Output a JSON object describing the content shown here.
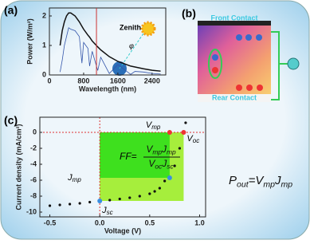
{
  "panel_labels": [
    "(a)",
    "(b)",
    "(c)"
  ],
  "diagram": {
    "front_contact": "Front Contact",
    "rear_contact": "Rear Contact"
  },
  "equations": {
    "fill_factor": {
      "lhs": "FF=",
      "numerator": [
        {
          "text": "V",
          "sub": "mp"
        },
        {
          "text": "J",
          "sub": "mp"
        }
      ],
      "denominator": [
        {
          "text": "V",
          "sub": "oc"
        },
        {
          "text": "J",
          "sub": "sc"
        }
      ]
    },
    "power": [
      {
        "text": "P",
        "sub": "out"
      },
      {
        "text": "="
      },
      {
        "text": "V",
        "sub": "mp"
      },
      {
        "text": "J",
        "sub": "mp"
      }
    ]
  },
  "chart_data": [
    {
      "type": "line",
      "x_label": "Wavelength (nm)",
      "y_label": "Power (W/m²)",
      "annotations": [
        "Zenith",
        "φ"
      ],
      "x": [
        250,
        300,
        350,
        400,
        450,
        500,
        600,
        700,
        760,
        800,
        900,
        940,
        1000,
        1130,
        1200,
        1400,
        1600,
        1900,
        2000,
        2200,
        2400,
        2600
      ],
      "series": [
        {
          "color": "#111111",
          "values": [
            1.0,
            1.5,
            1.8,
            2.0,
            2.1,
            2.1,
            2.0,
            1.8,
            1.65,
            1.55,
            1.35,
            1.28,
            1.15,
            0.95,
            0.85,
            0.62,
            0.46,
            0.3,
            0.27,
            0.21,
            0.16,
            0.13
          ]
        },
        {
          "color": "#3355aa",
          "values": [
            0.1,
            0.5,
            1.0,
            1.3,
            1.6,
            1.55,
            1.5,
            1.3,
            0.4,
            1.1,
            0.9,
            0.3,
            0.8,
            0.15,
            0.6,
            0.05,
            0.35,
            0.02,
            0.12,
            0.1,
            0.05,
            0.03
          ]
        }
      ],
      "vline": 1100,
      "vline_color": "#cc3333",
      "xlim": [
        0,
        2720
      ],
      "ylim": [
        0,
        2.27
      ],
      "xticks": [
        0,
        800,
        1600,
        2400
      ],
      "yticks": [
        0,
        1,
        2
      ]
    },
    {
      "type": "scatter",
      "x_label": "Voltage (V)",
      "y_label": "Current density (mA/cm²)",
      "x": [
        -0.5,
        -0.4,
        -0.3,
        -0.2,
        -0.1,
        0,
        0.1,
        0.2,
        0.3,
        0.4,
        0.5,
        0.55,
        0.6,
        0.65,
        0.7,
        0.75,
        0.8,
        0.84,
        0.86
      ],
      "series": [
        {
          "color": "#111111",
          "values": [
            -9.2,
            -9.1,
            -9.0,
            -8.9,
            -8.75,
            -8.6,
            -8.5,
            -8.35,
            -8.2,
            -8.0,
            -7.7,
            -7.4,
            -7.0,
            -6.1,
            -5.7,
            -4.2,
            -2.0,
            0,
            1.2
          ]
        }
      ],
      "vmp": 0.7,
      "jmp": -5.7,
      "voc": 0.84,
      "jsc": -8.6,
      "labels": {
        "vmp": {
          "text": "V",
          "sub": "mp"
        },
        "voc": {
          "text": "V",
          "sub": "oc"
        },
        "jmp": {
          "text": "J",
          "sub": "mp"
        },
        "jsc": {
          "text": "J",
          "sub": "sc"
        }
      },
      "xlim": [
        -0.6,
        1.06
      ],
      "ylim": [
        -10.6,
        1.9
      ],
      "xticks": [
        -0.5,
        {
          "value": 0,
          "label": "0.0"
        },
        0.5,
        {
          "value": 1,
          "label": "1.0"
        }
      ],
      "yticks": [
        -10,
        -8,
        -6,
        -4,
        -2,
        0
      ]
    }
  ]
}
